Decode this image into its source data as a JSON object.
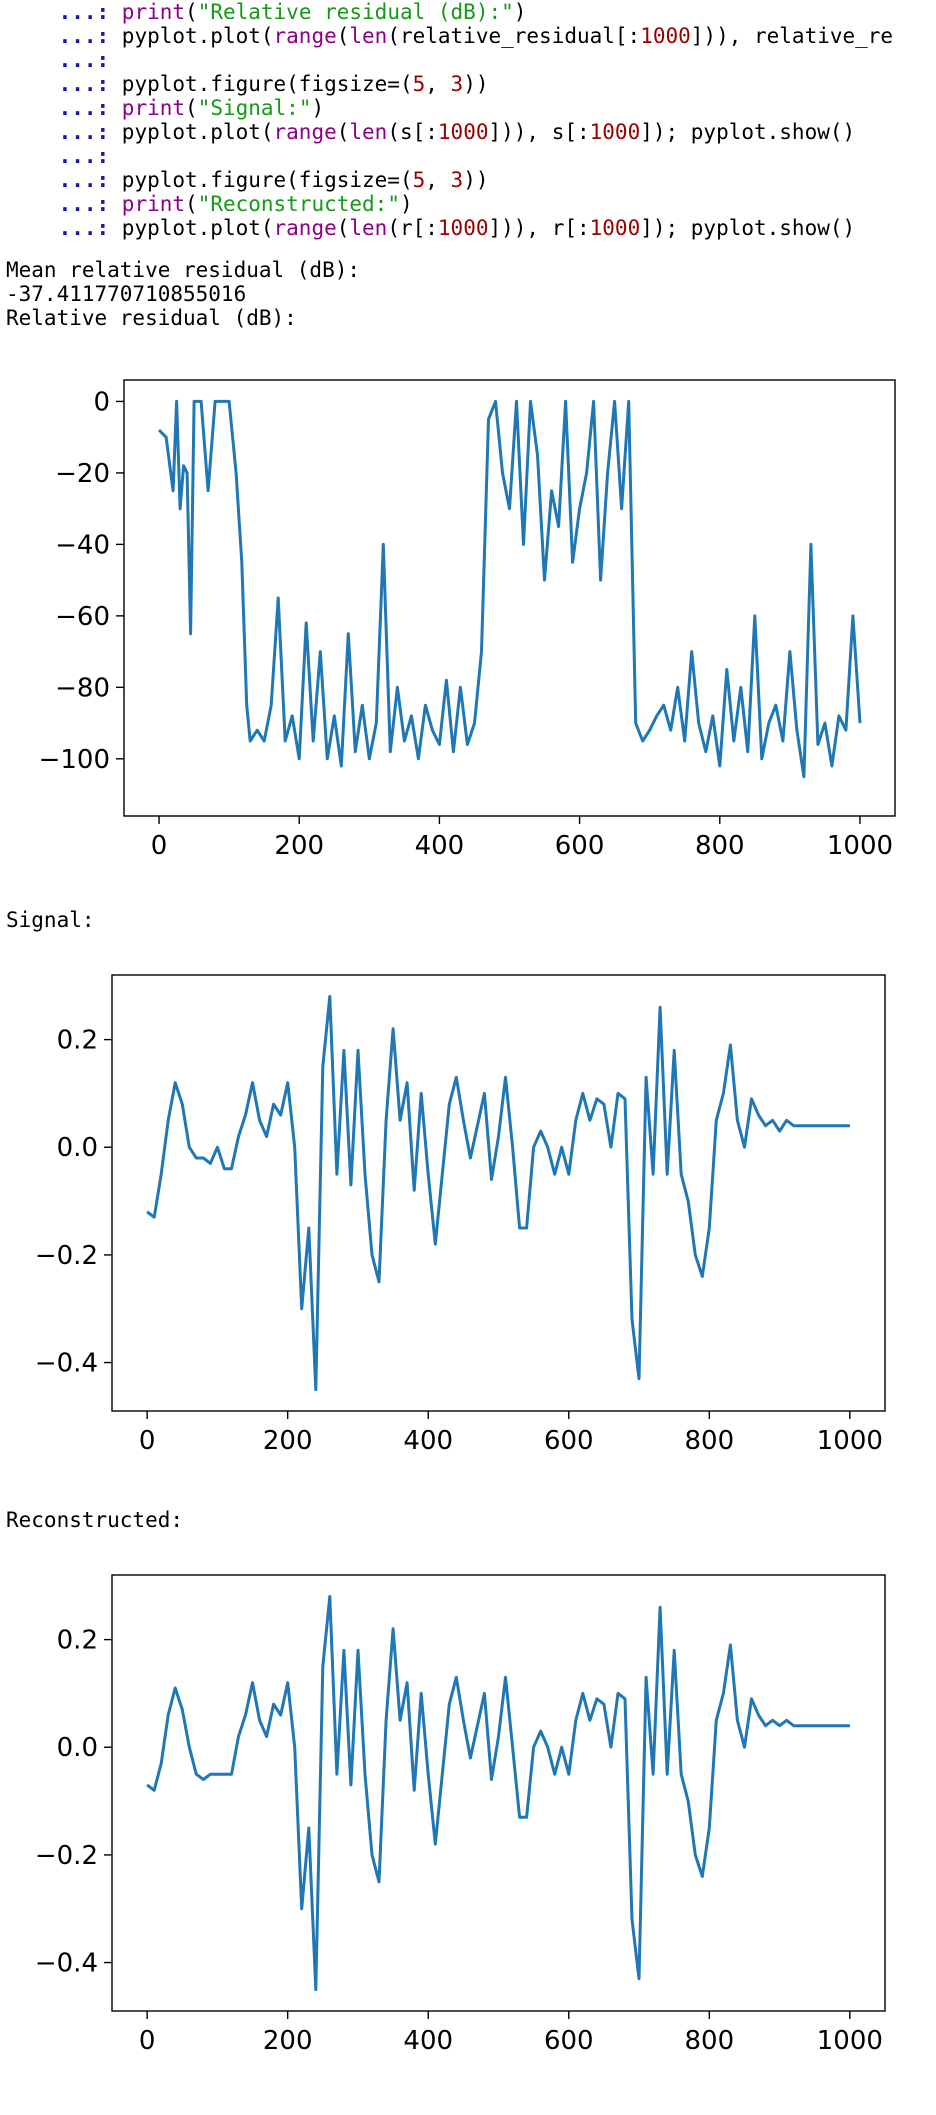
{
  "code": {
    "prompt": "...:",
    "lines": [
      [
        {
          "t": "print",
          "c": "kw-fn"
        },
        {
          "t": "(",
          "c": ""
        },
        {
          "t": "\"Relative residual (dB):\"",
          "c": "str"
        },
        {
          "t": ")",
          "c": ""
        }
      ],
      [
        {
          "t": "pyplot.plot(",
          "c": ""
        },
        {
          "t": "range",
          "c": "kw-fn"
        },
        {
          "t": "(",
          "c": ""
        },
        {
          "t": "len",
          "c": "kw-fn"
        },
        {
          "t": "(relative_residual[:",
          "c": ""
        },
        {
          "t": "1000",
          "c": "num"
        },
        {
          "t": "])), relative_re",
          "c": ""
        }
      ],
      [],
      [
        {
          "t": "pyplot.figure(figsize=(",
          "c": ""
        },
        {
          "t": "5",
          "c": "num"
        },
        {
          "t": ", ",
          "c": ""
        },
        {
          "t": "3",
          "c": "num"
        },
        {
          "t": "))",
          "c": ""
        }
      ],
      [
        {
          "t": "print",
          "c": "kw-fn"
        },
        {
          "t": "(",
          "c": ""
        },
        {
          "t": "\"Signal:\"",
          "c": "str"
        },
        {
          "t": ")",
          "c": ""
        }
      ],
      [
        {
          "t": "pyplot.plot(",
          "c": ""
        },
        {
          "t": "range",
          "c": "kw-fn"
        },
        {
          "t": "(",
          "c": ""
        },
        {
          "t": "len",
          "c": "kw-fn"
        },
        {
          "t": "(s[:",
          "c": ""
        },
        {
          "t": "1000",
          "c": "num"
        },
        {
          "t": "])), s[:",
          "c": ""
        },
        {
          "t": "1000",
          "c": "num"
        },
        {
          "t": "]); pyplot.show()",
          "c": ""
        }
      ],
      [],
      [
        {
          "t": "pyplot.figure(figsize=(",
          "c": ""
        },
        {
          "t": "5",
          "c": "num"
        },
        {
          "t": ", ",
          "c": ""
        },
        {
          "t": "3",
          "c": "num"
        },
        {
          "t": "))",
          "c": ""
        }
      ],
      [
        {
          "t": "print",
          "c": "kw-fn"
        },
        {
          "t": "(",
          "c": ""
        },
        {
          "t": "\"Reconstructed:\"",
          "c": "str"
        },
        {
          "t": ")",
          "c": ""
        }
      ],
      [
        {
          "t": "pyplot.plot(",
          "c": ""
        },
        {
          "t": "range",
          "c": "kw-fn"
        },
        {
          "t": "(",
          "c": ""
        },
        {
          "t": "len",
          "c": "kw-fn"
        },
        {
          "t": "(r[:",
          "c": ""
        },
        {
          "t": "1000",
          "c": "num"
        },
        {
          "t": "])), r[:",
          "c": ""
        },
        {
          "t": "1000",
          "c": "num"
        },
        {
          "t": "]); pyplot.show()",
          "c": ""
        }
      ]
    ]
  },
  "output": {
    "mean_label": "Mean relative residual (dB):",
    "mean_value": "-37.411770710855016",
    "residual_label": "Relative residual (dB):",
    "signal_label": "Signal:",
    "reconstructed_label": "Reconstructed:"
  },
  "colors": {
    "line": "#1f77b4",
    "prompt": "#1a1aa6",
    "keyword": "#8b008b",
    "string": "#159a15",
    "number": "#990000"
  },
  "chart_data": [
    {
      "type": "line",
      "title": "",
      "xlabel": "",
      "ylabel": "",
      "xlim": [
        -50,
        1050
      ],
      "ylim": [
        -116,
        6
      ],
      "xticks": [
        0,
        200,
        400,
        600,
        800,
        1000
      ],
      "yticks": [
        0,
        -20,
        -40,
        -60,
        -80,
        -100
      ],
      "x": [
        0,
        10,
        20,
        25,
        30,
        35,
        40,
        45,
        50,
        60,
        70,
        80,
        90,
        100,
        110,
        118,
        125,
        130,
        140,
        150,
        160,
        170,
        180,
        190,
        200,
        210,
        220,
        230,
        240,
        250,
        260,
        270,
        280,
        290,
        300,
        310,
        320,
        330,
        340,
        350,
        360,
        370,
        380,
        390,
        400,
        410,
        420,
        430,
        440,
        450,
        460,
        470,
        480,
        490,
        500,
        510,
        520,
        530,
        540,
        550,
        560,
        570,
        580,
        590,
        600,
        610,
        620,
        630,
        640,
        650,
        660,
        670,
        680,
        690,
        700,
        710,
        720,
        730,
        740,
        750,
        760,
        770,
        780,
        790,
        800,
        810,
        820,
        830,
        840,
        850,
        860,
        870,
        880,
        890,
        900,
        910,
        920,
        930,
        940,
        950,
        960,
        970,
        980,
        990,
        1000
      ],
      "y": [
        -8,
        -10,
        -25,
        0,
        -30,
        -18,
        -20,
        -65,
        0,
        0,
        -25,
        0,
        0,
        0,
        -20,
        -45,
        -85,
        -95,
        -92,
        -95,
        -85,
        -55,
        -95,
        -88,
        -100,
        -62,
        -95,
        -70,
        -100,
        -88,
        -102,
        -65,
        -98,
        -85,
        -100,
        -90,
        -40,
        -98,
        -80,
        -95,
        -88,
        -100,
        -85,
        -92,
        -96,
        -78,
        -98,
        -80,
        -96,
        -90,
        -70,
        -5,
        0,
        -20,
        -30,
        0,
        -40,
        0,
        -15,
        -50,
        -25,
        -35,
        0,
        -45,
        -30,
        -20,
        0,
        -50,
        -20,
        0,
        -30,
        0,
        -90,
        -95,
        -92,
        -88,
        -85,
        -92,
        -80,
        -95,
        -70,
        -90,
        -98,
        -88,
        -102,
        -75,
        -95,
        -80,
        -98,
        -60,
        -100,
        -90,
        -85,
        -95,
        -70,
        -92,
        -105,
        -40,
        -96,
        -90,
        -102,
        -88,
        -92,
        -60,
        -90
      ]
    },
    {
      "type": "line",
      "title": "",
      "xlabel": "",
      "ylabel": "",
      "xlim": [
        -50,
        1050
      ],
      "ylim": [
        -0.49,
        0.32
      ],
      "xticks": [
        0,
        200,
        400,
        600,
        800,
        1000
      ],
      "yticks": [
        0.2,
        0.0,
        -0.2,
        -0.4
      ],
      "x": [
        0,
        10,
        20,
        30,
        40,
        50,
        60,
        70,
        80,
        90,
        100,
        110,
        120,
        130,
        140,
        150,
        160,
        170,
        180,
        190,
        200,
        210,
        220,
        230,
        240,
        250,
        260,
        270,
        280,
        290,
        300,
        310,
        320,
        330,
        340,
        350,
        360,
        370,
        380,
        390,
        400,
        410,
        420,
        430,
        440,
        450,
        460,
        470,
        480,
        490,
        500,
        510,
        520,
        530,
        540,
        550,
        560,
        570,
        580,
        590,
        600,
        610,
        620,
        630,
        640,
        650,
        660,
        670,
        680,
        690,
        700,
        710,
        720,
        730,
        740,
        750,
        760,
        770,
        780,
        790,
        800,
        810,
        820,
        830,
        840,
        850,
        860,
        870,
        880,
        890,
        900,
        910,
        920,
        930,
        940,
        950,
        960,
        970,
        980,
        990,
        1000
      ],
      "y": [
        -0.12,
        -0.13,
        -0.05,
        0.05,
        0.12,
        0.08,
        0.0,
        -0.02,
        -0.02,
        -0.03,
        0.0,
        -0.04,
        -0.04,
        0.02,
        0.06,
        0.12,
        0.05,
        0.02,
        0.08,
        0.06,
        0.12,
        0.0,
        -0.3,
        -0.15,
        -0.45,
        0.15,
        0.28,
        -0.05,
        0.18,
        -0.07,
        0.18,
        -0.05,
        -0.2,
        -0.25,
        0.05,
        0.22,
        0.05,
        0.12,
        -0.08,
        0.1,
        -0.05,
        -0.18,
        -0.05,
        0.08,
        0.13,
        0.05,
        -0.02,
        0.04,
        0.1,
        -0.06,
        0.02,
        0.13,
        0.0,
        -0.15,
        -0.15,
        0.0,
        0.03,
        0.0,
        -0.05,
        0.0,
        -0.05,
        0.05,
        0.1,
        0.05,
        0.09,
        0.08,
        0.0,
        0.1,
        0.09,
        -0.32,
        -0.43,
        0.13,
        -0.05,
        0.26,
        -0.05,
        0.18,
        -0.05,
        -0.1,
        -0.2,
        -0.24,
        -0.15,
        0.05,
        0.1,
        0.19,
        0.05,
        0.0,
        0.09,
        0.06,
        0.04,
        0.05,
        0.03,
        0.05,
        0.04,
        0.04,
        0.04,
        0.04,
        0.04,
        0.04,
        0.04,
        0.04,
        0.04
      ]
    },
    {
      "type": "line",
      "title": "",
      "xlabel": "",
      "ylabel": "",
      "xlim": [
        -50,
        1050
      ],
      "ylim": [
        -0.49,
        0.32
      ],
      "xticks": [
        0,
        200,
        400,
        600,
        800,
        1000
      ],
      "yticks": [
        0.2,
        0.0,
        -0.2,
        -0.4
      ],
      "x": [
        0,
        10,
        20,
        30,
        40,
        50,
        60,
        70,
        80,
        90,
        100,
        110,
        120,
        130,
        140,
        150,
        160,
        170,
        180,
        190,
        200,
        210,
        220,
        230,
        240,
        250,
        260,
        270,
        280,
        290,
        300,
        310,
        320,
        330,
        340,
        350,
        360,
        370,
        380,
        390,
        400,
        410,
        420,
        430,
        440,
        450,
        460,
        470,
        480,
        490,
        500,
        510,
        520,
        530,
        540,
        550,
        560,
        570,
        580,
        590,
        600,
        610,
        620,
        630,
        640,
        650,
        660,
        670,
        680,
        690,
        700,
        710,
        720,
        730,
        740,
        750,
        760,
        770,
        780,
        790,
        800,
        810,
        820,
        830,
        840,
        850,
        860,
        870,
        880,
        890,
        900,
        910,
        920,
        930,
        940,
        950,
        960,
        970,
        980,
        990,
        1000
      ],
      "y": [
        -0.07,
        -0.08,
        -0.03,
        0.06,
        0.11,
        0.07,
        0.0,
        -0.05,
        -0.06,
        -0.05,
        -0.05,
        -0.05,
        -0.05,
        0.02,
        0.06,
        0.12,
        0.05,
        0.02,
        0.08,
        0.06,
        0.12,
        0.0,
        -0.3,
        -0.15,
        -0.45,
        0.15,
        0.28,
        -0.05,
        0.18,
        -0.07,
        0.18,
        -0.05,
        -0.2,
        -0.25,
        0.05,
        0.22,
        0.05,
        0.12,
        -0.08,
        0.1,
        -0.05,
        -0.18,
        -0.05,
        0.08,
        0.13,
        0.05,
        -0.02,
        0.04,
        0.1,
        -0.06,
        0.02,
        0.13,
        0.0,
        -0.13,
        -0.13,
        0.0,
        0.03,
        0.0,
        -0.05,
        0.0,
        -0.05,
        0.05,
        0.1,
        0.05,
        0.09,
        0.08,
        0.0,
        0.1,
        0.09,
        -0.32,
        -0.43,
        0.13,
        -0.05,
        0.26,
        -0.05,
        0.18,
        -0.05,
        -0.1,
        -0.2,
        -0.24,
        -0.15,
        0.05,
        0.1,
        0.19,
        0.05,
        0.0,
        0.09,
        0.06,
        0.04,
        0.05,
        0.04,
        0.05,
        0.04,
        0.04,
        0.04,
        0.04,
        0.04,
        0.04,
        0.04,
        0.04,
        0.04
      ]
    }
  ]
}
